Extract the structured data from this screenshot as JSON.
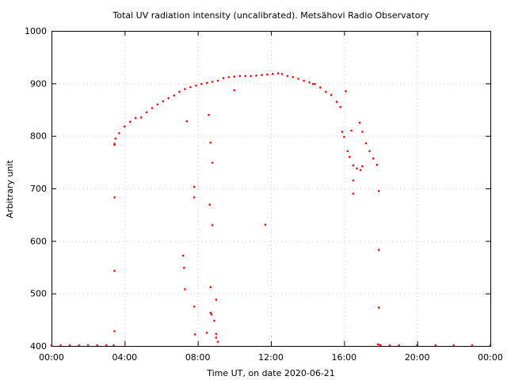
{
  "chart_data": {
    "type": "scatter",
    "title": "Total UV radiation intensity (uncalibrated). Metsähovi Radio Observatory",
    "xlabel": "Time UT, on date 2020-06-21",
    "ylabel": "Arbitrary unit",
    "xlim": [
      0,
      24
    ],
    "ylim": [
      400,
      1000
    ],
    "x_ticks": [
      0,
      4,
      8,
      12,
      16,
      20,
      24
    ],
    "x_tick_labels": [
      "00:00",
      "04:00",
      "08:00",
      "12:00",
      "16:00",
      "20:00",
      "00:00"
    ],
    "y_ticks": [
      400,
      500,
      600,
      700,
      800,
      900,
      1000
    ],
    "y_tick_labels": [
      "400",
      "500",
      "600",
      "700",
      "800",
      "900",
      "1000"
    ],
    "grid": true,
    "legend": "none",
    "series": [
      {
        "color": "#ff0000",
        "x": [
          0.0,
          0.5,
          1.0,
          1.5,
          2.0,
          2.5,
          3.0,
          3.4,
          3.45,
          3.5,
          3.7,
          4.0,
          4.3,
          4.6,
          4.9,
          5.2,
          5.5,
          5.8,
          6.1,
          6.4,
          6.7,
          7.0,
          7.3,
          7.6,
          7.9,
          8.2,
          8.5,
          8.8,
          9.1,
          9.4,
          9.7,
          10.0,
          10.3,
          10.6,
          10.9,
          11.2,
          11.5,
          11.8,
          12.1,
          12.4,
          12.6,
          12.9,
          13.2,
          13.5,
          13.8,
          14.1,
          14.4,
          14.7,
          15.0,
          15.3,
          15.6,
          15.8,
          15.9,
          16.0,
          16.2,
          16.3,
          16.5,
          16.7,
          16.85,
          17.0,
          17.2,
          17.4,
          17.6,
          17.8,
          17.85,
          18.0,
          18.5,
          19.0,
          20.0,
          21.0,
          22.0,
          23.0,
          24.0,
          3.45,
          3.45,
          3.45,
          3.45,
          7.2,
          7.25,
          7.3,
          7.4,
          7.8,
          7.8,
          7.8,
          7.85,
          8.5,
          8.6,
          8.65,
          8.7,
          8.7,
          8.7,
          8.75,
          8.8,
          8.9,
          9.0,
          9.0,
          9.1,
          8.8,
          9.0,
          10.0,
          11.7,
          14.3,
          16.1,
          16.4,
          16.5,
          16.5,
          16.9,
          17.0,
          17.9,
          17.9,
          17.9,
          17.95
        ],
        "y": [
          401,
          401,
          401,
          401,
          401,
          401,
          401,
          401,
          785,
          795,
          805,
          818,
          827,
          834,
          835,
          845,
          853,
          860,
          866,
          872,
          877,
          884,
          889,
          893,
          896,
          899,
          901,
          903,
          905,
          910,
          912,
          913,
          914,
          914,
          914,
          915,
          916,
          917,
          918,
          919,
          918,
          914,
          912,
          909,
          905,
          902,
          899,
          892,
          884,
          878,
          865,
          855,
          808,
          798,
          771,
          760,
          744,
          738,
          825,
          808,
          786,
          771,
          757,
          745,
          403,
          401,
          401,
          401,
          401,
          401,
          401,
          401,
          401,
          683,
          543,
          428,
          783,
          572,
          549,
          508,
          828,
          703,
          683,
          475,
          422,
          425,
          840,
          669,
          787,
          512,
          463,
          460,
          630,
          448,
          423,
          416,
          408,
          749,
          488,
          887,
          631,
          899,
          885,
          810,
          715,
          690,
          735,
          742,
          695,
          583,
          473,
          402
        ]
      }
    ]
  }
}
